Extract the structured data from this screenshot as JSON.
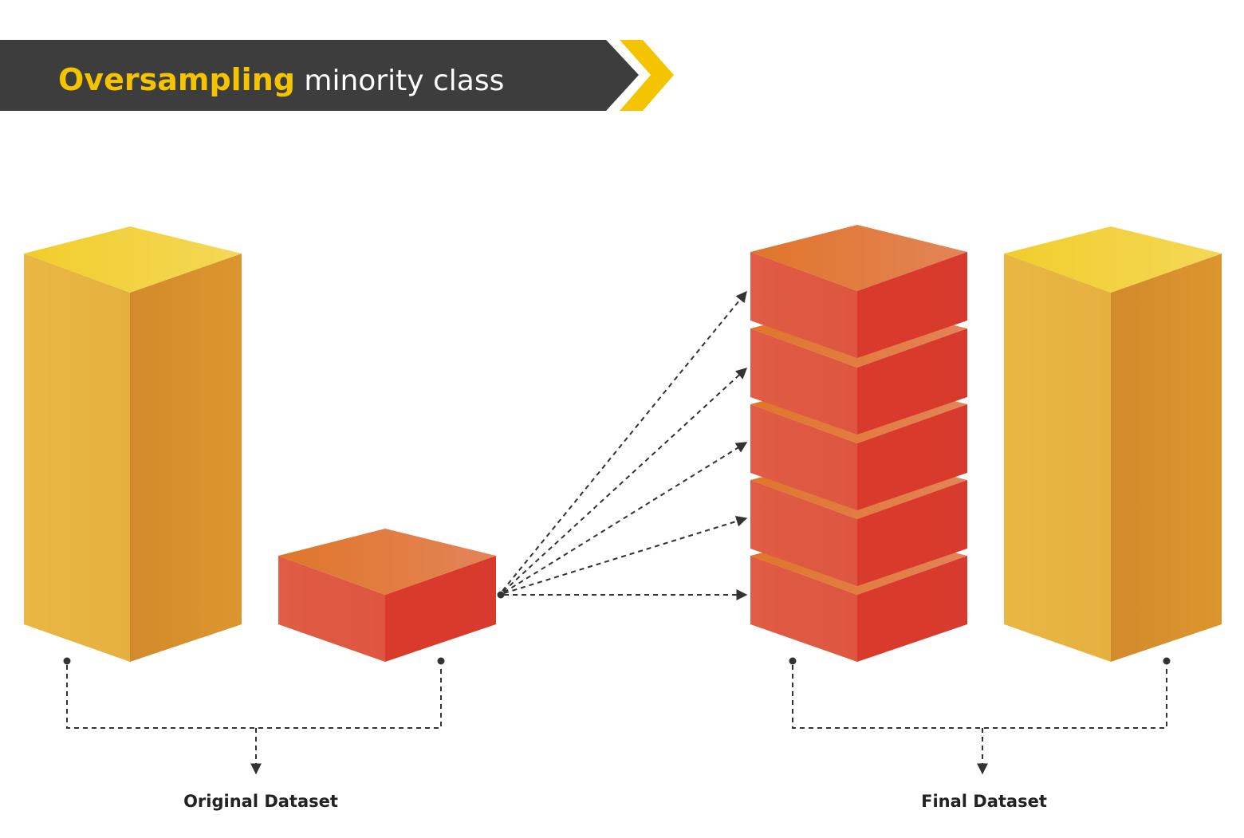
{
  "header": {
    "title_highlight": "Oversampling",
    "title_rest": " minority class",
    "banner_color": "#3d3d3d",
    "highlight_color": "#f5c400",
    "rest_color": "#ffffff",
    "chevron_color": "#f5c400"
  },
  "captions": {
    "original": "Original Dataset",
    "final": "Final Dataset"
  },
  "colors": {
    "majority_top": "#f3d23e",
    "majority_left": "#e8b541",
    "majority_right": "#d68f2c",
    "minority_top": "#e27a3e",
    "minority_left": "#e05a43",
    "minority_right": "#da3a2c",
    "connector": "#333333"
  },
  "legend_semantics": {
    "majority_block_icon": "yellow-cuboid",
    "minority_block_icon": "red-cuboid"
  }
}
